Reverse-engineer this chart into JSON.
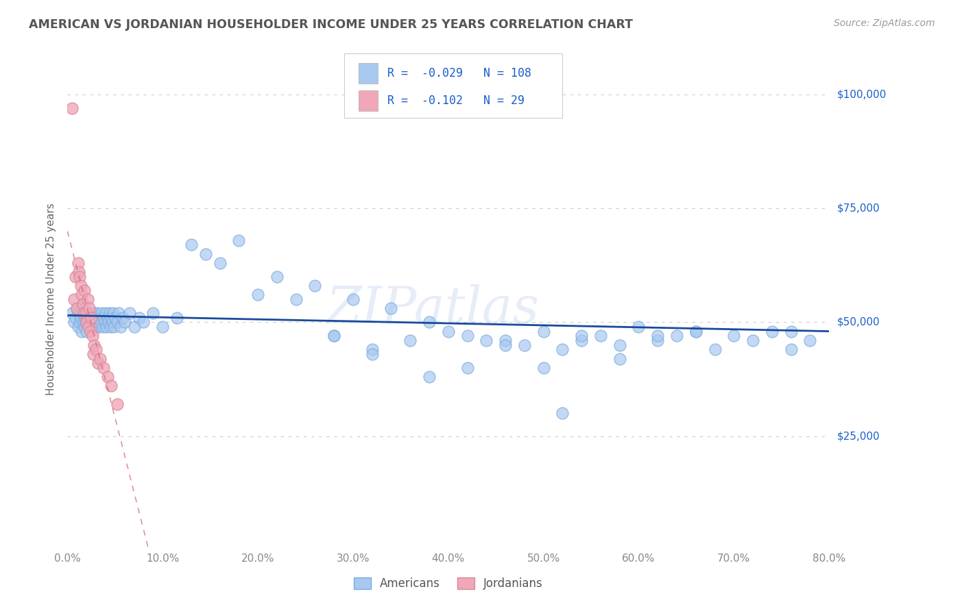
{
  "title": "AMERICAN VS JORDANIAN HOUSEHOLDER INCOME UNDER 25 YEARS CORRELATION CHART",
  "source_text": "Source: ZipAtlas.com",
  "ylabel": "Householder Income Under 25 years",
  "xlabel_ticks": [
    "0.0%",
    "10.0%",
    "20.0%",
    "30.0%",
    "40.0%",
    "50.0%",
    "60.0%",
    "70.0%",
    "80.0%"
  ],
  "xlim": [
    0.0,
    0.8
  ],
  "ylim": [
    0,
    110000
  ],
  "ytick_labels": [
    "$25,000",
    "$50,000",
    "$75,000",
    "$100,000"
  ],
  "ytick_values": [
    25000,
    50000,
    75000,
    100000
  ],
  "watermark": "ZIPatlas",
  "R_american": -0.029,
  "N_american": 108,
  "R_jordanian": -0.102,
  "N_jordanian": 29,
  "american_color": "#a8c8f0",
  "american_edge_color": "#7aaade",
  "jordanian_color": "#f0a8b8",
  "jordanian_edge_color": "#d88898",
  "american_line_color": "#1a4a9c",
  "jordanian_line_color": "#d06080",
  "background_color": "#ffffff",
  "grid_color": "#cccccc",
  "title_color": "#555555",
  "legend_R_color": "#1a5fc8",
  "legend_box_color": "#aaaaaa",
  "american_x": [
    0.005,
    0.007,
    0.008,
    0.01,
    0.011,
    0.012,
    0.013,
    0.014,
    0.015,
    0.015,
    0.016,
    0.017,
    0.018,
    0.018,
    0.019,
    0.02,
    0.02,
    0.021,
    0.022,
    0.022,
    0.023,
    0.024,
    0.025,
    0.025,
    0.026,
    0.027,
    0.028,
    0.029,
    0.03,
    0.03,
    0.031,
    0.032,
    0.033,
    0.034,
    0.035,
    0.036,
    0.037,
    0.038,
    0.039,
    0.04,
    0.041,
    0.042,
    0.043,
    0.044,
    0.045,
    0.046,
    0.047,
    0.048,
    0.049,
    0.05,
    0.052,
    0.054,
    0.056,
    0.058,
    0.06,
    0.065,
    0.07,
    0.075,
    0.08,
    0.09,
    0.1,
    0.115,
    0.13,
    0.145,
    0.16,
    0.18,
    0.2,
    0.22,
    0.24,
    0.26,
    0.28,
    0.3,
    0.32,
    0.34,
    0.36,
    0.38,
    0.4,
    0.42,
    0.44,
    0.46,
    0.48,
    0.5,
    0.52,
    0.54,
    0.56,
    0.58,
    0.6,
    0.62,
    0.64,
    0.66,
    0.68,
    0.7,
    0.72,
    0.74,
    0.76,
    0.78,
    0.76,
    0.52,
    0.38,
    0.42,
    0.28,
    0.32,
    0.46,
    0.58,
    0.62,
    0.66,
    0.5,
    0.54
  ],
  "american_y": [
    52000,
    50000,
    51000,
    53000,
    49000,
    52000,
    50000,
    51000,
    48000,
    53000,
    50000,
    52000,
    49000,
    51000,
    50000,
    52000,
    48000,
    51000,
    50000,
    52000,
    51000,
    49000,
    52000,
    50000,
    51000,
    50000,
    52000,
    49000,
    51000,
    50000,
    52000,
    50000,
    49000,
    51000,
    50000,
    52000,
    49000,
    51000,
    50000,
    52000,
    49000,
    51000,
    50000,
    52000,
    49000,
    51000,
    50000,
    52000,
    49000,
    51000,
    50000,
    52000,
    49000,
    51000,
    50000,
    52000,
    49000,
    51000,
    50000,
    52000,
    49000,
    51000,
    67000,
    65000,
    63000,
    68000,
    56000,
    60000,
    55000,
    58000,
    47000,
    55000,
    44000,
    53000,
    46000,
    50000,
    48000,
    47000,
    46000,
    46000,
    45000,
    40000,
    44000,
    46000,
    47000,
    45000,
    49000,
    46000,
    47000,
    48000,
    44000,
    47000,
    46000,
    48000,
    44000,
    46000,
    48000,
    30000,
    38000,
    40000,
    47000,
    43000,
    45000,
    42000,
    47000,
    48000,
    48000,
    47000
  ],
  "jordanian_x": [
    0.005,
    0.007,
    0.008,
    0.01,
    0.011,
    0.012,
    0.013,
    0.014,
    0.015,
    0.016,
    0.017,
    0.018,
    0.019,
    0.02,
    0.021,
    0.022,
    0.023,
    0.024,
    0.025,
    0.026,
    0.027,
    0.028,
    0.03,
    0.032,
    0.034,
    0.038,
    0.042,
    0.046,
    0.052
  ],
  "jordanian_y": [
    97000,
    55000,
    60000,
    53000,
    63000,
    61000,
    60000,
    58000,
    56000,
    54000,
    52000,
    57000,
    52000,
    50000,
    55000,
    49000,
    53000,
    48000,
    51000,
    47000,
    43000,
    45000,
    44000,
    41000,
    42000,
    40000,
    38000,
    36000,
    32000
  ]
}
